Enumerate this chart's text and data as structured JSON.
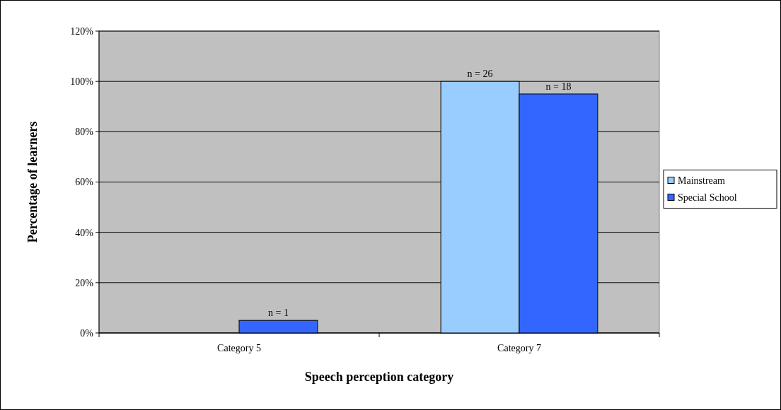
{
  "chart_data": {
    "type": "bar",
    "xlabel": "Speech perception category",
    "ylabel": "Percentage of learners",
    "categories": [
      "Category 5",
      "Category 7"
    ],
    "series": [
      {
        "name": "Mainstream",
        "color": "#99ccff",
        "values": [
          0,
          100
        ]
      },
      {
        "name": "Special School",
        "color": "#3366ff",
        "values": [
          5,
          95
        ]
      }
    ],
    "annotations": [
      {
        "text": "n = 1",
        "x": "Category 5",
        "y": 5
      },
      {
        "text": "n = 26",
        "x": "Category 7",
        "y": 100
      },
      {
        "text": "n = 18",
        "x": "Category 7",
        "y": 95
      }
    ],
    "ylim": [
      0,
      120
    ],
    "yticks": [
      {
        "value": 0,
        "label": "0%"
      },
      {
        "value": 20,
        "label": "20%"
      },
      {
        "value": 40,
        "label": "40%"
      },
      {
        "value": 60,
        "label": "60%"
      },
      {
        "value": 80,
        "label": "80%"
      },
      {
        "value": 100,
        "label": "100%"
      },
      {
        "value": 120,
        "label": "120%"
      }
    ],
    "grid": "y",
    "legend": "right"
  }
}
